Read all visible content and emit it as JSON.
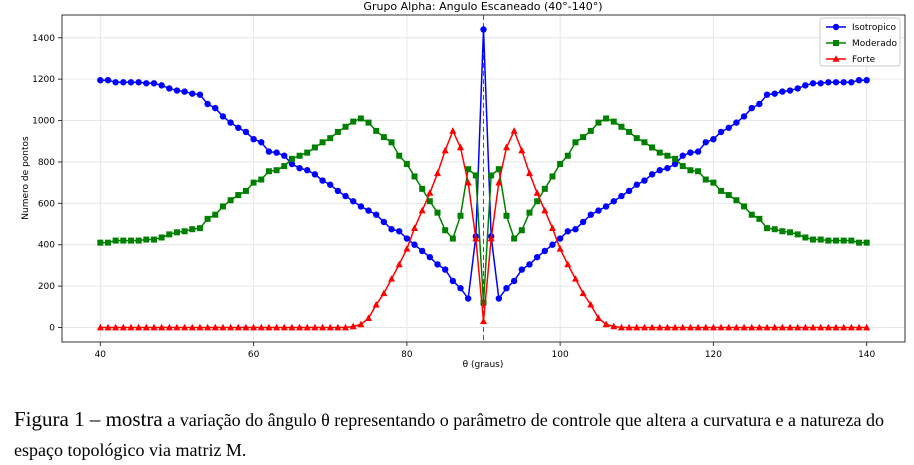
{
  "chart_data": {
    "type": "line",
    "title": "Grupo Alpha: Angulo Escaneado (40°-140°)",
    "xlabel": "θ (graus)",
    "ylabel": "Numero de pontos",
    "xlim": [
      35,
      145
    ],
    "ylim": [
      -70,
      1510
    ],
    "xticks": [
      40,
      60,
      80,
      100,
      120,
      140
    ],
    "yticks": [
      0,
      200,
      400,
      600,
      800,
      1000,
      1200,
      1400
    ],
    "grid": true,
    "legend_position": "top-right",
    "vline": 90,
    "x_start": 40,
    "x_step": 1,
    "series": [
      {
        "name": "Isotropico",
        "color": "#0000ff",
        "marker": "circle",
        "half_values": [
          1195,
          1195,
          1185,
          1185,
          1185,
          1185,
          1180,
          1180,
          1170,
          1155,
          1145,
          1140,
          1130,
          1125,
          1080,
          1060,
          1020,
          990,
          965,
          945,
          910,
          895,
          850,
          845,
          830,
          790,
          770,
          760,
          740,
          710,
          690,
          660,
          635,
          610,
          585,
          565,
          545,
          510,
          475,
          465,
          430,
          400,
          370,
          340,
          305,
          280,
          225,
          190,
          140,
          440,
          1440
        ]
      },
      {
        "name": "Moderado",
        "color": "#008000",
        "marker": "square",
        "half_values": [
          410,
          410,
          420,
          420,
          420,
          420,
          425,
          425,
          435,
          450,
          460,
          465,
          475,
          480,
          525,
          545,
          585,
          615,
          640,
          660,
          700,
          715,
          755,
          760,
          780,
          815,
          830,
          845,
          870,
          895,
          915,
          945,
          970,
          995,
          1010,
          990,
          950,
          920,
          895,
          830,
          790,
          730,
          670,
          610,
          555,
          470,
          430,
          540,
          765,
          735,
          120
        ]
      },
      {
        "name": "Forte",
        "color": "#ff0000",
        "marker": "triangle",
        "half_values": [
          0,
          0,
          0,
          0,
          0,
          0,
          0,
          0,
          0,
          0,
          0,
          0,
          0,
          0,
          0,
          0,
          0,
          0,
          0,
          0,
          0,
          0,
          0,
          0,
          0,
          0,
          0,
          0,
          0,
          0,
          0,
          0,
          0,
          5,
          15,
          45,
          110,
          165,
          235,
          305,
          380,
          480,
          565,
          650,
          745,
          855,
          950,
          870,
          700,
          430,
          30
        ]
      }
    ]
  },
  "caption": {
    "lead": "Figura 1 – mostra",
    "text": " a variação do ângulo θ representando o parâmetro de controle que altera a curvatura e a natureza do espaço topológico via matriz M."
  }
}
